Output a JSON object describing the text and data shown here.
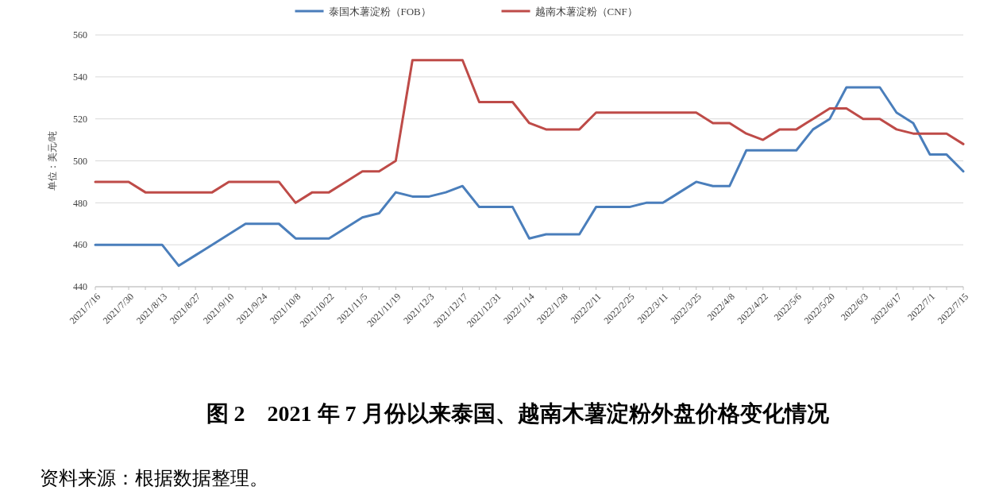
{
  "chart_data": {
    "type": "line",
    "title": "图 2　2021 年 7 月份以来泰国、越南木薯淀粉外盘价格变化情况",
    "ylabel": "单位：美元/吨",
    "annotations": [
      "资料来源：根据数据整理。"
    ],
    "categories": [
      "2021/7/16",
      null,
      "2021/7/30",
      null,
      "2021/8/13",
      null,
      "2021/8/27",
      null,
      "2021/9/10",
      null,
      "2021/9/24",
      null,
      "2021/10/8",
      null,
      "2021/10/22",
      null,
      "2021/11/5",
      null,
      "2021/11/19",
      null,
      "2021/12/3",
      null,
      "2021/12/17",
      null,
      "2021/12/31",
      null,
      "2022/1/14",
      null,
      "2022/1/28",
      null,
      "2022/2/11",
      null,
      "2022/2/25",
      null,
      "2022/3/11",
      null,
      "2022/3/25",
      null,
      "2022/4/8",
      null,
      "2022/4/22",
      null,
      "2022/5/6",
      null,
      "2022/5/20",
      null,
      "2022/6/3",
      null,
      "2022/6/17",
      null,
      "2022/7/1",
      null,
      "2022/7/15"
    ],
    "series": [
      {
        "name": "泰国木薯淀粉（FOB）",
        "color": "#4a7ebb",
        "values": [
          460,
          460,
          460,
          460,
          460,
          450,
          455,
          460,
          465,
          470,
          470,
          470,
          463,
          463,
          463,
          468,
          473,
          475,
          485,
          483,
          483,
          485,
          488,
          478,
          478,
          478,
          463,
          465,
          465,
          465,
          478,
          478,
          478,
          480,
          480,
          485,
          490,
          488,
          488,
          505,
          505,
          505,
          505,
          515,
          520,
          535,
          535,
          535,
          523,
          518,
          503,
          503,
          495
        ]
      },
      {
        "name": "越南木薯淀粉（CNF）",
        "color": "#be4b48",
        "values": [
          490,
          490,
          490,
          485,
          485,
          485,
          485,
          485,
          490,
          490,
          490,
          490,
          480,
          485,
          485,
          490,
          495,
          495,
          500,
          548,
          548,
          548,
          548,
          528,
          528,
          528,
          518,
          515,
          515,
          515,
          523,
          523,
          523,
          523,
          523,
          523,
          523,
          518,
          518,
          513,
          510,
          515,
          515,
          520,
          525,
          525,
          520,
          520,
          515,
          513,
          513,
          513,
          508
        ]
      }
    ],
    "ylim": [
      440,
      560
    ],
    "yticks": [
      440,
      460,
      480,
      500,
      520,
      540,
      560
    ],
    "grid": "y",
    "legend": "top",
    "marker": "none",
    "line_style": "solid"
  }
}
